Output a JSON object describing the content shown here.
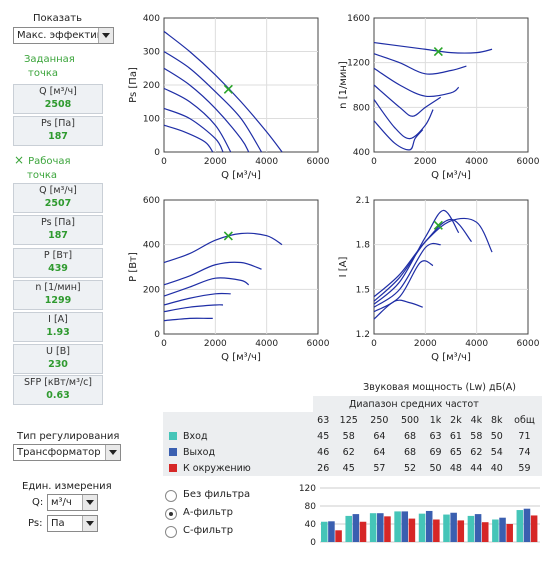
{
  "sidebar": {
    "show_label": "Показать",
    "show_select": "Макс. эффективн",
    "set_point_title_1": "Заданная",
    "set_point_title_2": "точка",
    "set_q_label": "Q [м³/ч]",
    "set_q_value": "2508",
    "set_ps_label": "Ps [Па]",
    "set_ps_value": "187",
    "work_point_title_1": "Рабочая",
    "work_point_title_2": "точка",
    "work_marker": "×",
    "work_values": [
      {
        "label": "Q [м³/ч]",
        "value": "2507"
      },
      {
        "label": "Ps [Па]",
        "value": "187"
      },
      {
        "label": "P [Вт]",
        "value": "439"
      },
      {
        "label": "n [1/мин]",
        "value": "1299"
      },
      {
        "label": "I [A]",
        "value": "1.93"
      },
      {
        "label": "U [В]",
        "value": "230"
      },
      {
        "label": "SFP [кВт/м³/с]",
        "value": "0.63"
      }
    ],
    "regulation_label": "Тип регулирования",
    "regulation_select": "Трансформатор",
    "units_label": "Един. измерения",
    "q_unit_label": "Q:",
    "q_unit_select": "м³/ч",
    "ps_unit_label": "Ps:",
    "ps_unit_select": "Па"
  },
  "charts": {
    "ps": {
      "ylabel": "Ps [Па]",
      "xlabel": "Q [м³/ч]",
      "yticks": [
        "400",
        "300",
        "200",
        "100",
        "0"
      ],
      "xticks": [
        "0",
        "2000",
        "4000",
        "6000"
      ]
    },
    "n": {
      "ylabel": "n [1/мин]",
      "xlabel": "Q [м³/ч]",
      "yticks": [
        "1600",
        "1200",
        "800",
        "400"
      ],
      "xticks": [
        "0",
        "2000",
        "4000",
        "6000"
      ]
    },
    "p": {
      "ylabel": "P [Вт]",
      "xlabel": "Q [м³/ч]",
      "yticks": [
        "600",
        "400",
        "200",
        "0"
      ],
      "xticks": [
        "0",
        "2000",
        "4000",
        "6000"
      ]
    },
    "i": {
      "ylabel": "I [A]",
      "xlabel": "Q [м³/ч]",
      "yticks": [
        "2.1",
        "1.8",
        "1.5",
        "1.2"
      ],
      "xticks": [
        "0",
        "2000",
        "4000",
        "6000"
      ]
    }
  },
  "chart_data": [
    {
      "type": "line",
      "xlabel": "Q [м³/ч]",
      "ylabel": "Ps [Па]",
      "xlim": [
        0,
        6000
      ],
      "ylim": [
        0,
        400
      ],
      "series": [
        {
          "x": [
            0,
            1000,
            2000,
            3000,
            4000,
            4600
          ],
          "y": [
            360,
            300,
            230,
            150,
            60,
            0
          ]
        },
        {
          "x": [
            0,
            1000,
            2000,
            3000,
            3800
          ],
          "y": [
            300,
            250,
            180,
            100,
            0
          ]
        },
        {
          "x": [
            0,
            1000,
            2000,
            3000,
            3300
          ],
          "y": [
            250,
            200,
            130,
            40,
            0
          ]
        },
        {
          "x": [
            0,
            1000,
            2000,
            2600
          ],
          "y": [
            190,
            150,
            80,
            0
          ]
        },
        {
          "x": [
            0,
            1000,
            2000,
            2300
          ],
          "y": [
            130,
            100,
            40,
            0
          ]
        },
        {
          "x": [
            0,
            800,
            1600,
            1900
          ],
          "y": [
            80,
            60,
            30,
            0
          ]
        }
      ],
      "work_point": {
        "x": 2507,
        "y": 187
      }
    },
    {
      "type": "line",
      "xlabel": "Q [м³/ч]",
      "ylabel": "n [1/мин]",
      "xlim": [
        0,
        6000
      ],
      "ylim": [
        400,
        1600
      ],
      "series": [
        {
          "x": [
            0,
            1000,
            2000,
            3000,
            4000,
            4600
          ],
          "y": [
            1380,
            1350,
            1320,
            1290,
            1290,
            1320
          ]
        },
        {
          "x": [
            0,
            1000,
            2000,
            3000,
            3600
          ],
          "y": [
            1280,
            1200,
            1100,
            1130,
            1170
          ]
        },
        {
          "x": [
            0,
            1000,
            2000,
            3000,
            3300
          ],
          "y": [
            1150,
            1000,
            900,
            930,
            980
          ]
        },
        {
          "x": [
            0,
            1000,
            1500,
            2000,
            2600
          ],
          "y": [
            1000,
            800,
            720,
            800,
            890
          ]
        },
        {
          "x": [
            0,
            800,
            1400,
            2000,
            2300
          ],
          "y": [
            870,
            620,
            520,
            640,
            780
          ]
        },
        {
          "x": [
            0,
            800,
            1400,
            1600,
            1900
          ],
          "y": [
            680,
            480,
            420,
            520,
            600
          ]
        }
      ],
      "work_point": {
        "x": 2507,
        "y": 1299
      }
    },
    {
      "type": "line",
      "xlabel": "Q [м³/ч]",
      "ylabel": "P [Вт]",
      "xlim": [
        0,
        6000
      ],
      "ylim": [
        0,
        600
      ],
      "series": [
        {
          "x": [
            0,
            1000,
            2000,
            3000,
            4000,
            4600
          ],
          "y": [
            320,
            360,
            420,
            450,
            440,
            400
          ]
        },
        {
          "x": [
            0,
            1000,
            2000,
            3000,
            3800
          ],
          "y": [
            220,
            260,
            310,
            320,
            290
          ]
        },
        {
          "x": [
            0,
            1000,
            2000,
            3000,
            3300
          ],
          "y": [
            170,
            210,
            250,
            240,
            220
          ]
        },
        {
          "x": [
            0,
            1000,
            2000,
            2600
          ],
          "y": [
            130,
            160,
            180,
            180
          ]
        },
        {
          "x": [
            0,
            1000,
            2000,
            2300
          ],
          "y": [
            100,
            120,
            130,
            130
          ]
        },
        {
          "x": [
            0,
            1000,
            1700,
            1900
          ],
          "y": [
            60,
            70,
            70,
            70
          ]
        }
      ],
      "work_point": {
        "x": 2507,
        "y": 439
      }
    },
    {
      "type": "line",
      "xlabel": "Q [м³/ч]",
      "ylabel": "I [A]",
      "xlim": [
        0,
        6000
      ],
      "ylim": [
        1.2,
        2.1
      ],
      "series": [
        {
          "x": [
            0,
            1000,
            2000,
            3000,
            4000,
            4600
          ],
          "y": [
            1.45,
            1.6,
            1.82,
            1.96,
            1.95,
            1.75
          ]
        },
        {
          "x": [
            0,
            1000,
            2000,
            3000,
            3800
          ],
          "y": [
            1.42,
            1.58,
            1.82,
            1.97,
            1.82
          ]
        },
        {
          "x": [
            0,
            1000,
            2000,
            2700,
            3300
          ],
          "y": [
            1.4,
            1.55,
            1.85,
            2.03,
            1.88
          ]
        },
        {
          "x": [
            0,
            1000,
            2000,
            2600
          ],
          "y": [
            1.38,
            1.5,
            1.78,
            1.8
          ]
        },
        {
          "x": [
            0,
            1000,
            1800,
            2300
          ],
          "y": [
            1.35,
            1.45,
            1.68,
            1.66
          ]
        },
        {
          "x": [
            0,
            800,
            1400,
            1900
          ],
          "y": [
            1.3,
            1.42,
            1.41,
            1.38
          ]
        }
      ],
      "work_point": {
        "x": 2507,
        "y": 1.93
      }
    },
    {
      "type": "bar",
      "ylim": [
        0,
        120
      ],
      "yticks": [
        "120",
        "80",
        "40",
        "0"
      ],
      "categories": [
        "63",
        "125",
        "250",
        "500",
        "1k",
        "2k",
        "4k",
        "8k",
        "общ"
      ],
      "series": [
        {
          "name": "Вход",
          "color": "#45c5b8",
          "values": [
            45,
            58,
            64,
            68,
            63,
            61,
            58,
            50,
            71
          ]
        },
        {
          "name": "Выход",
          "color": "#3a5fb0",
          "values": [
            46,
            62,
            64,
            68,
            69,
            65,
            62,
            54,
            74
          ]
        },
        {
          "name": "К окружению",
          "color": "#d62727",
          "values": [
            26,
            45,
            57,
            52,
            50,
            48,
            44,
            40,
            59
          ]
        }
      ]
    }
  ],
  "sound": {
    "title": "Звуковая мощность (Lw) дБ(A)",
    "subtitle": "Диапазон средних частот",
    "headers": [
      "63",
      "125",
      "250",
      "500",
      "1k",
      "2k",
      "4k",
      "8k",
      "общ"
    ],
    "rows": [
      {
        "name": "Вход",
        "color": "#45c5b8",
        "values": [
          "45",
          "58",
          "64",
          "68",
          "63",
          "61",
          "58",
          "50",
          "71"
        ]
      },
      {
        "name": "Выход",
        "color": "#3a5fb0",
        "values": [
          "46",
          "62",
          "64",
          "68",
          "69",
          "65",
          "62",
          "54",
          "74"
        ]
      },
      {
        "name": "К окружению",
        "color": "#d62727",
        "values": [
          "26",
          "45",
          "57",
          "52",
          "50",
          "48",
          "44",
          "40",
          "59"
        ]
      }
    ]
  },
  "filters": [
    {
      "label": "Без фильтра",
      "selected": false
    },
    {
      "label": "А-фильтр",
      "selected": true
    },
    {
      "label": "С-фильтр",
      "selected": false
    }
  ]
}
